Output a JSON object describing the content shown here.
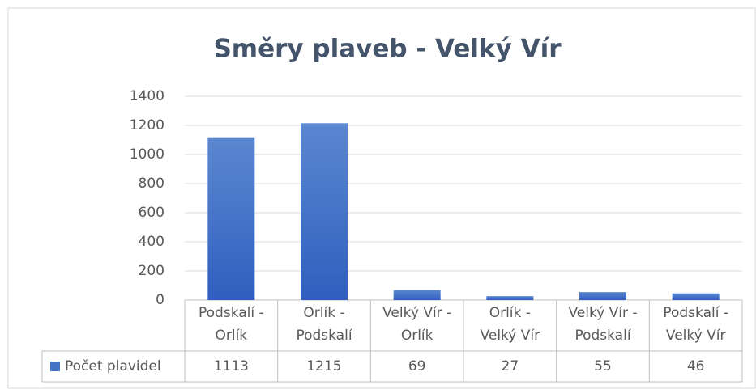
{
  "chart_data": {
    "type": "bar",
    "title": "Směry plaveb - Velký Vír",
    "categories": [
      "Podskalí - Orlík",
      "Orlík - Podskalí",
      "Velký Vír - Orlík",
      "Orlík - Velký Vír",
      "Velký Vír - Podskalí",
      "Podskalí - Velký Vír"
    ],
    "series": [
      {
        "name": "Počet plavidel",
        "color": "#4472c4",
        "values": [
          1113,
          1215,
          69,
          27,
          55,
          46
        ]
      }
    ],
    "ylim": [
      0,
      1400
    ],
    "yticks": [
      0,
      200,
      400,
      600,
      800,
      1000,
      1200,
      1400
    ],
    "grid": true,
    "data_table": true
  }
}
